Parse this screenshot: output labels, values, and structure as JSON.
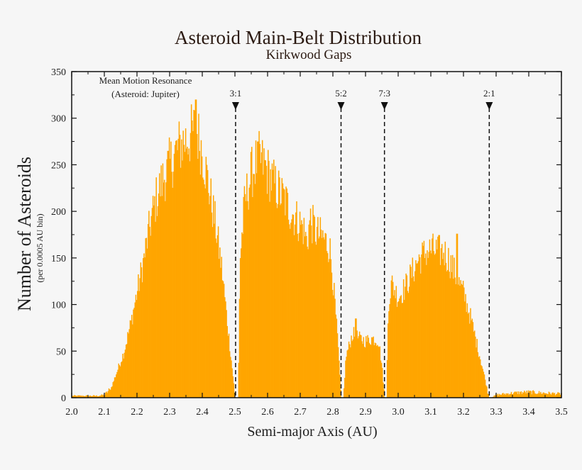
{
  "chart_data": {
    "type": "bar",
    "title": "Asteroid Main-Belt Distribution",
    "subtitle": "Kirkwood Gaps",
    "xlabel": "Semi-major Axis (AU)",
    "ylabel": "Number of Asteroids",
    "ylabel_sub": "(per 0.0005 AU bin)",
    "xlim": [
      2.0,
      3.5
    ],
    "ylim": [
      0,
      350
    ],
    "x_ticks": [
      "2.0",
      "2.1",
      "2.2",
      "2.3",
      "2.4",
      "2.5",
      "2.6",
      "2.7",
      "2.8",
      "2.9",
      "3.0",
      "3.1",
      "3.2",
      "3.3",
      "3.4",
      "3.5"
    ],
    "y_ticks": [
      "0",
      "50",
      "100",
      "150",
      "200",
      "250",
      "300",
      "350"
    ],
    "grid": false,
    "bar_color": "#ffa500",
    "annotation": {
      "line1": "Mean Motion Resonance",
      "line2": "(Asteroid: Jupiter)"
    },
    "resonances": [
      {
        "label": "3:1",
        "x": 2.502
      },
      {
        "label": "5:2",
        "x": 2.825
      },
      {
        "label": "7:3",
        "x": 2.958
      },
      {
        "label": "2:1",
        "x": 3.279
      }
    ],
    "envelope": [
      [
        2.0,
        2
      ],
      [
        2.08,
        2
      ],
      [
        2.1,
        3
      ],
      [
        2.12,
        10
      ],
      [
        2.14,
        30
      ],
      [
        2.16,
        50
      ],
      [
        2.18,
        80
      ],
      [
        2.2,
        115
      ],
      [
        2.22,
        150
      ],
      [
        2.24,
        190
      ],
      [
        2.26,
        220
      ],
      [
        2.28,
        240
      ],
      [
        2.3,
        255
      ],
      [
        2.32,
        270
      ],
      [
        2.34,
        280
      ],
      [
        2.36,
        285
      ],
      [
        2.38,
        295
      ],
      [
        2.4,
        270
      ],
      [
        2.42,
        230
      ],
      [
        2.44,
        190
      ],
      [
        2.46,
        140
      ],
      [
        2.48,
        70
      ],
      [
        2.495,
        20
      ],
      [
        2.5,
        0
      ],
      [
        2.51,
        0
      ],
      [
        2.515,
        150
      ],
      [
        2.53,
        215
      ],
      [
        2.55,
        245
      ],
      [
        2.57,
        262
      ],
      [
        2.59,
        255
      ],
      [
        2.61,
        240
      ],
      [
        2.63,
        228
      ],
      [
        2.65,
        218
      ],
      [
        2.67,
        205
      ],
      [
        2.69,
        195
      ],
      [
        2.71,
        185
      ],
      [
        2.72,
        170
      ],
      [
        2.73,
        195
      ],
      [
        2.75,
        180
      ],
      [
        2.77,
        175
      ],
      [
        2.79,
        165
      ],
      [
        2.8,
        130
      ],
      [
        2.815,
        60
      ],
      [
        2.825,
        0
      ],
      [
        2.832,
        0
      ],
      [
        2.84,
        45
      ],
      [
        2.86,
        70
      ],
      [
        2.88,
        65
      ],
      [
        2.9,
        62
      ],
      [
        2.92,
        65
      ],
      [
        2.94,
        62
      ],
      [
        2.95,
        35
      ],
      [
        2.958,
        0
      ],
      [
        2.964,
        0
      ],
      [
        2.97,
        105
      ],
      [
        2.98,
        125
      ],
      [
        3.0,
        110
      ],
      [
        3.02,
        120
      ],
      [
        3.04,
        135
      ],
      [
        3.06,
        150
      ],
      [
        3.08,
        158
      ],
      [
        3.1,
        162
      ],
      [
        3.12,
        160
      ],
      [
        3.14,
        160
      ],
      [
        3.16,
        148
      ],
      [
        3.18,
        130
      ],
      [
        3.2,
        115
      ],
      [
        3.22,
        90
      ],
      [
        3.24,
        60
      ],
      [
        3.26,
        30
      ],
      [
        3.275,
        5
      ],
      [
        3.279,
        0
      ],
      [
        3.29,
        1
      ],
      [
        3.3,
        3
      ],
      [
        3.35,
        5
      ],
      [
        3.4,
        6
      ],
      [
        3.45,
        5
      ],
      [
        3.5,
        4
      ]
    ],
    "peaks": [
      {
        "x": 2.38,
        "y": 320
      },
      {
        "x": 2.57,
        "y": 275
      },
      {
        "x": 2.87,
        "y": 85
      },
      {
        "x": 3.18,
        "y": 176
      }
    ]
  }
}
